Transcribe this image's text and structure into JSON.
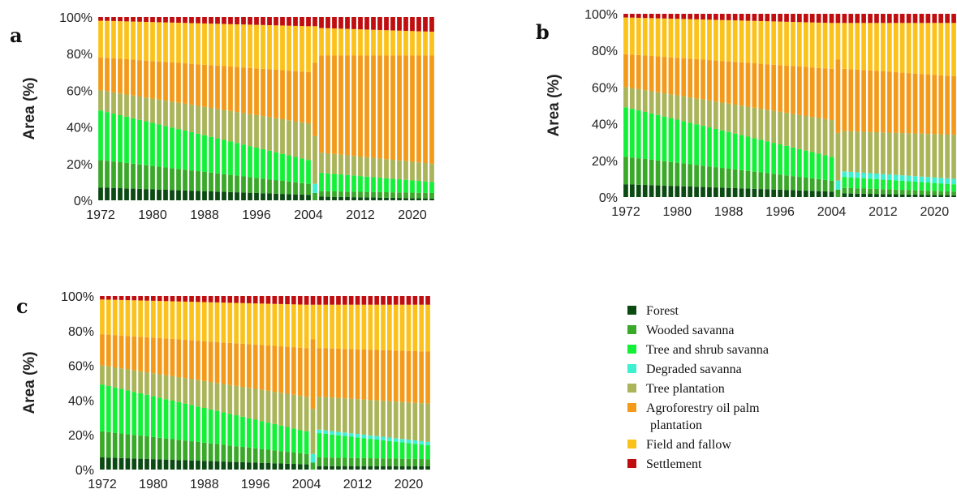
{
  "legend": {
    "entries": [
      {
        "key": "forest",
        "lines": [
          "Forest"
        ],
        "color": "#0b4a12"
      },
      {
        "key": "wooded",
        "lines": [
          "Wooded savanna"
        ],
        "color": "#3aa828"
      },
      {
        "key": "treeshrub",
        "lines": [
          "Tree and shrub savanna"
        ],
        "color": "#14f038"
      },
      {
        "key": "degraded",
        "lines": [
          "Degraded savanna"
        ],
        "color": "#3cf0d0"
      },
      {
        "key": "plantation",
        "lines": [
          "Tree plantation"
        ],
        "color": "#aab458"
      },
      {
        "key": "agro",
        "lines": [
          "Agroforestry oil palm",
          "plantation"
        ],
        "color": "#f39a1a"
      },
      {
        "key": "field",
        "lines": [
          "Field and fallow"
        ],
        "color": "#fbc21c"
      },
      {
        "key": "settlement",
        "lines": [
          "Settlement"
        ],
        "color": "#c00d10"
      }
    ]
  },
  "chart_data": [
    {
      "type": "bar",
      "stacked": true,
      "panel": "a",
      "ylabel": "Area (%)",
      "ylim": [
        0,
        100
      ],
      "ytick_labels": [
        "0%",
        "20%",
        "40%",
        "60%",
        "80%",
        "100%"
      ],
      "xtick_labels": [
        "1972",
        "1980",
        "1988",
        "1996",
        "2004",
        "2012",
        "2020"
      ],
      "x": [
        "1972",
        "1973",
        "1974",
        "1975",
        "1976",
        "1977",
        "1978",
        "1979",
        "1980",
        "1981",
        "1982",
        "1983",
        "1984",
        "1985",
        "1986",
        "1987",
        "1988",
        "1989",
        "1990",
        "1991",
        "1992",
        "1993",
        "1994",
        "1995",
        "1996",
        "1997",
        "1998",
        "1999",
        "2000",
        "2001",
        "2002",
        "2003",
        "2004",
        "2005",
        "2006",
        "2007",
        "2008",
        "2009",
        "2010",
        "2011",
        "2012",
        "2013",
        "2014",
        "2015",
        "2016",
        "2017",
        "2018",
        "2019",
        "2020",
        "2021",
        "2022",
        "2023"
      ],
      "anchors": {
        "x": [
          1972,
          2004,
          2005,
          2006,
          2023
        ],
        "forest": [
          7,
          3,
          0,
          2,
          1
        ],
        "wooded": [
          15,
          6,
          4,
          3,
          3
        ],
        "treeshrub": [
          27,
          13,
          0,
          10,
          6
        ],
        "degraded": [
          0,
          0,
          5,
          0,
          0
        ],
        "plantation": [
          11,
          20,
          26,
          11,
          10
        ],
        "agro": [
          18,
          28,
          40,
          53,
          59
        ],
        "field": [
          20,
          25,
          20,
          15,
          13
        ],
        "settlement": [
          2,
          5,
          5,
          6,
          8
        ]
      }
    },
    {
      "type": "bar",
      "stacked": true,
      "panel": "b",
      "ylabel": "Area (%)",
      "ylim": [
        0,
        100
      ],
      "ytick_labels": [
        "0%",
        "20%",
        "40%",
        "60%",
        "80%",
        "100%"
      ],
      "xtick_labels": [
        "1972",
        "1980",
        "1988",
        "1996",
        "2004",
        "2012",
        "2020"
      ],
      "x": [
        "1972",
        "1973",
        "1974",
        "1975",
        "1976",
        "1977",
        "1978",
        "1979",
        "1980",
        "1981",
        "1982",
        "1983",
        "1984",
        "1985",
        "1986",
        "1987",
        "1988",
        "1989",
        "1990",
        "1991",
        "1992",
        "1993",
        "1994",
        "1995",
        "1996",
        "1997",
        "1998",
        "1999",
        "2000",
        "2001",
        "2002",
        "2003",
        "2004",
        "2005",
        "2006",
        "2007",
        "2008",
        "2009",
        "2010",
        "2011",
        "2012",
        "2013",
        "2014",
        "2015",
        "2016",
        "2017",
        "2018",
        "2019",
        "2020",
        "2021",
        "2022",
        "2023"
      ],
      "anchors": {
        "x": [
          1972,
          2004,
          2005,
          2006,
          2023
        ],
        "forest": [
          7,
          3,
          0,
          2,
          1
        ],
        "wooded": [
          15,
          6,
          4,
          3,
          2
        ],
        "treeshrub": [
          27,
          13,
          0,
          6,
          4
        ],
        "degraded": [
          0,
          0,
          5,
          3,
          3
        ],
        "plantation": [
          11,
          20,
          26,
          22,
          24
        ],
        "agro": [
          18,
          28,
          40,
          34,
          32
        ],
        "field": [
          20,
          25,
          20,
          25,
          29
        ],
        "settlement": [
          2,
          5,
          5,
          5,
          5
        ]
      }
    },
    {
      "type": "bar",
      "stacked": true,
      "panel": "c",
      "ylabel": "Area (%)",
      "ylim": [
        0,
        100
      ],
      "ytick_labels": [
        "0%",
        "20%",
        "40%",
        "60%",
        "80%",
        "100%"
      ],
      "xtick_labels": [
        "1972",
        "1980",
        "1988",
        "1996",
        "2004",
        "2012",
        "2020"
      ],
      "x": [
        "1972",
        "1973",
        "1974",
        "1975",
        "1976",
        "1977",
        "1978",
        "1979",
        "1980",
        "1981",
        "1982",
        "1983",
        "1984",
        "1985",
        "1986",
        "1987",
        "1988",
        "1989",
        "1990",
        "1991",
        "1992",
        "1993",
        "1994",
        "1995",
        "1996",
        "1997",
        "1998",
        "1999",
        "2000",
        "2001",
        "2002",
        "2003",
        "2004",
        "2005",
        "2006",
        "2007",
        "2008",
        "2009",
        "2010",
        "2011",
        "2012",
        "2013",
        "2014",
        "2015",
        "2016",
        "2017",
        "2018",
        "2019",
        "2020",
        "2021",
        "2022",
        "2023"
      ],
      "anchors": {
        "x": [
          1972,
          2004,
          2005,
          2006,
          2023
        ],
        "forest": [
          7,
          3,
          0,
          2,
          2
        ],
        "wooded": [
          15,
          6,
          4,
          5,
          4
        ],
        "treeshrub": [
          27,
          13,
          0,
          14,
          8
        ],
        "degraded": [
          0,
          0,
          5,
          2,
          2
        ],
        "plantation": [
          11,
          20,
          26,
          19,
          22
        ],
        "agro": [
          18,
          28,
          40,
          28,
          30
        ],
        "field": [
          20,
          25,
          20,
          25,
          27
        ],
        "settlement": [
          2,
          5,
          5,
          5,
          5
        ]
      }
    }
  ]
}
